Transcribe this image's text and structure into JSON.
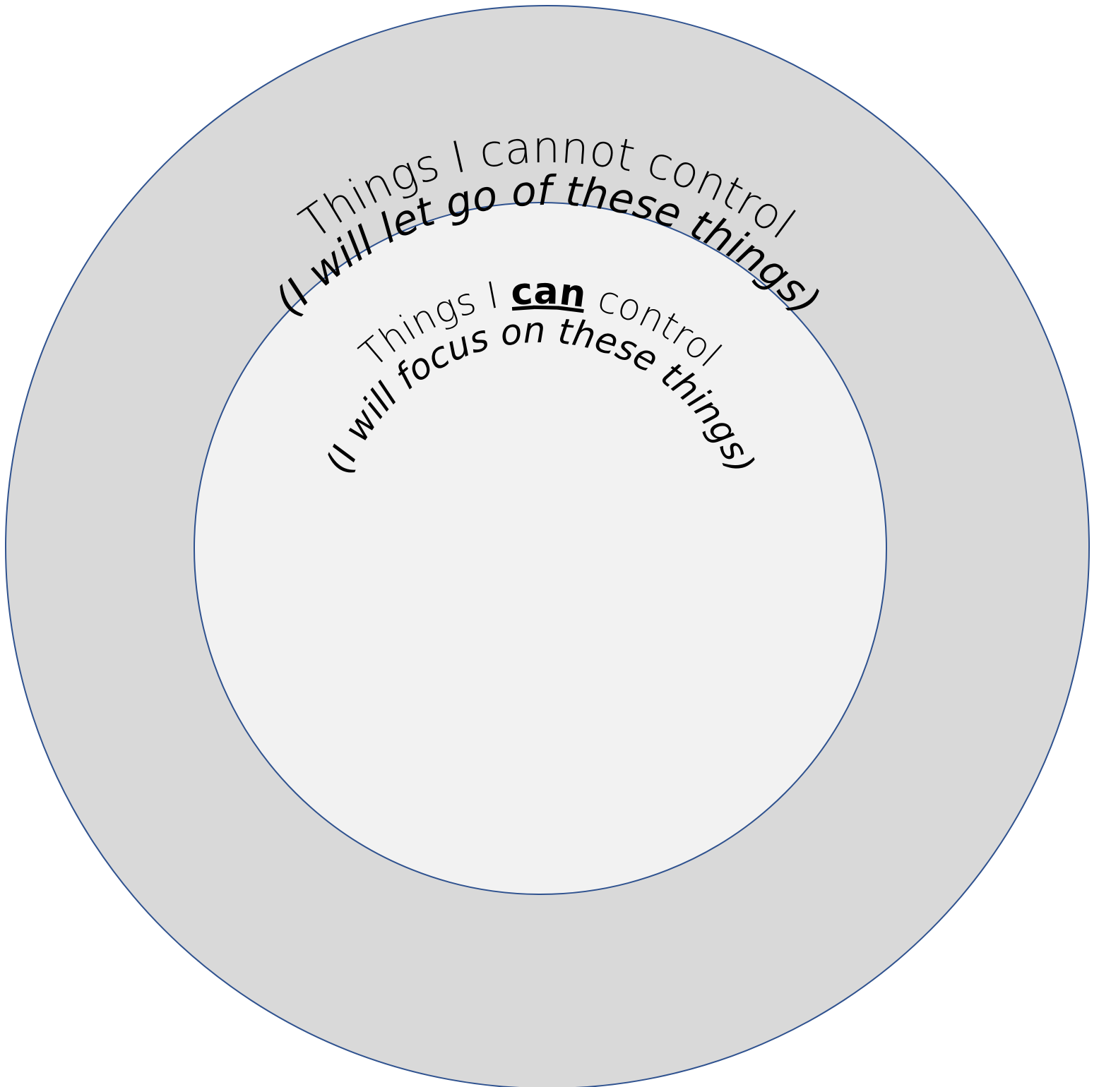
{
  "outer_circle": {
    "title": "Things I cannot control",
    "subtitle": "(I will let go of these things)",
    "fill": "#d9d9d9",
    "stroke": "#2f528f"
  },
  "inner_circle": {
    "title_before": "Things I ",
    "title_emphasis": "can",
    "title_after": " control",
    "subtitle": "(I will focus on these things)",
    "fill": "#f2f2f2",
    "stroke": "#2f528f"
  }
}
